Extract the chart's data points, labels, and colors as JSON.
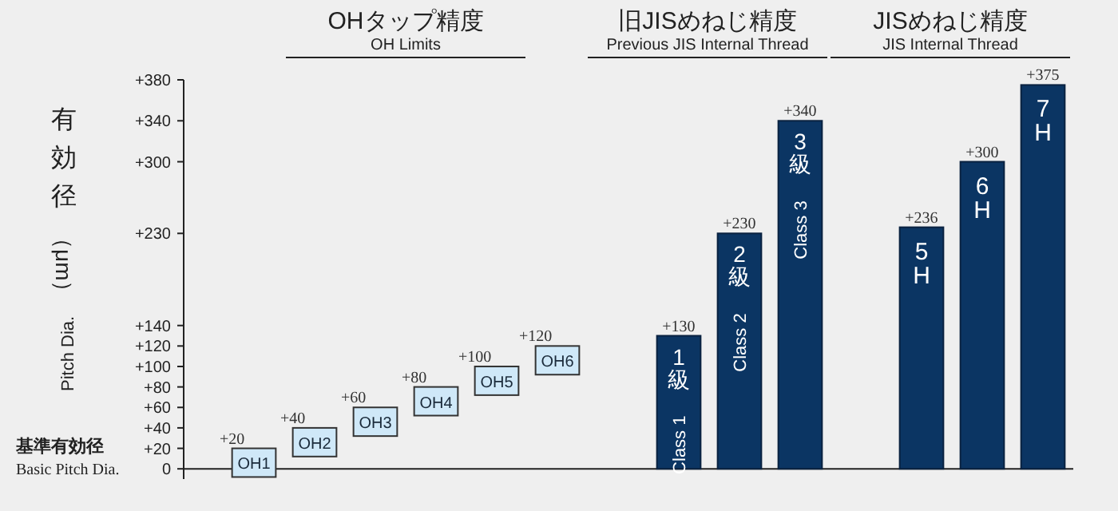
{
  "chart_data": {
    "type": "bar",
    "ylabel": "有効径（μm）",
    "categories": [
      "OH1",
      "OH2",
      "OH3",
      "OH4",
      "OH5",
      "OH6",
      null,
      "1級\nClass 1",
      "2級\nClass 2",
      "3級\nClass 3",
      null,
      "5H",
      "6H",
      "7H"
    ],
    "base": [
      -8,
      12,
      32,
      52,
      72,
      92,
      null,
      0,
      0,
      0,
      null,
      0,
      0,
      0
    ],
    "values": [
      28,
      28,
      28,
      28,
      28,
      28,
      null,
      130,
      230,
      340,
      null,
      236,
      300,
      375
    ],
    "colors": [
      "#cfe8f8",
      "#cfe8f8",
      "#cfe8f8",
      "#cfe8f8",
      "#cfe8f8",
      "#cfe8f8",
      null,
      "#0b3563",
      "#0b3563",
      "#0b3563",
      null,
      "#0b3563",
      "#0b3563",
      "#0b3563"
    ],
    "value_labels": [
      "+20",
      "+40",
      "+60",
      "+80",
      "+100",
      "+120",
      null,
      "+130",
      "+230",
      "+340",
      null,
      "+236",
      "+300",
      "+375"
    ],
    "ylim": [
      -10,
      380
    ],
    "yticks": [
      0,
      {
        "value": 20,
        "label": "+20"
      },
      {
        "value": 40,
        "label": "+40"
      },
      {
        "value": 60,
        "label": "+60"
      },
      {
        "value": 80,
        "label": "+80"
      },
      {
        "value": 100,
        "label": "+100"
      },
      {
        "value": 120,
        "label": "+120"
      },
      {
        "value": 140,
        "label": "+140"
      },
      {
        "value": 230,
        "label": "+230"
      },
      {
        "value": 300,
        "label": "+300"
      },
      {
        "value": 340,
        "label": "+340"
      },
      {
        "value": 380,
        "label": "+380"
      }
    ],
    "annotations": [
      "OHタップ精度",
      "OH Limits",
      "旧JISめねじ精度",
      "Previous JIS Internal Thread",
      "JISめねじ精度",
      "JIS Internal Thread",
      "基準有効径",
      "Basic Pitch Dia.",
      "Pitch Dia."
    ]
  }
}
